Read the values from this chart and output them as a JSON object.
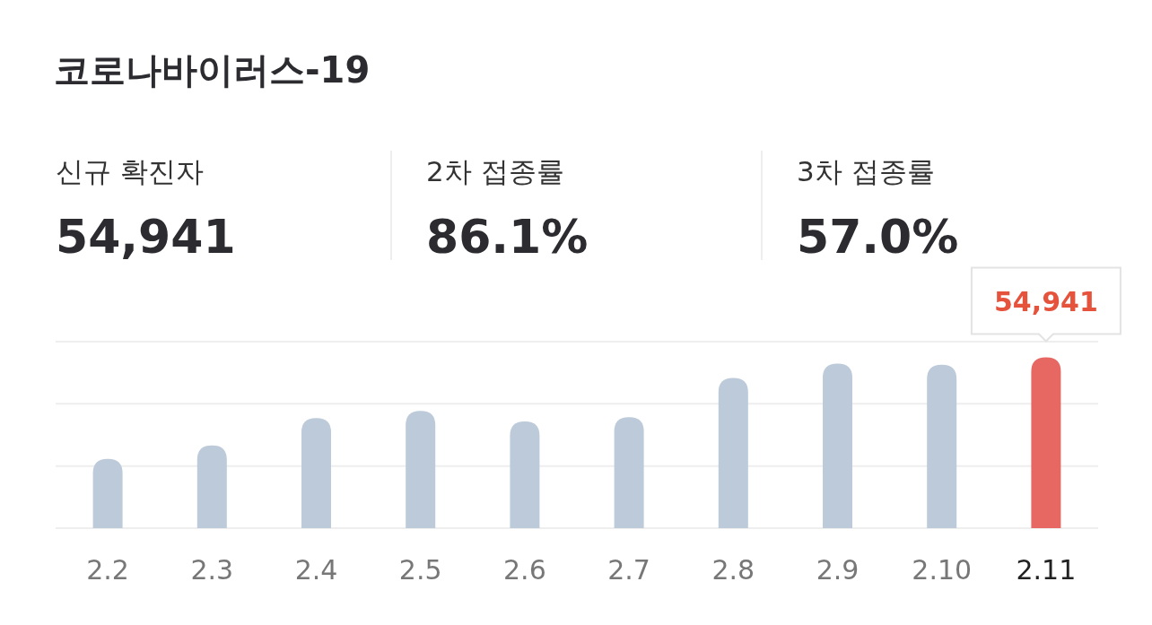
{
  "chart_data": {
    "type": "bar",
    "title": "코로나바이러스-19",
    "annotations": [
      "신규 확진자",
      "54,941",
      "2차 접종률",
      "86.1%",
      "3차 접종률",
      "57.0%"
    ],
    "categories": [
      "2.2",
      "2.3",
      "2.4",
      "2.5",
      "2.6",
      "2.7",
      "2.8",
      "2.9",
      "2.10",
      "2.11"
    ],
    "ylim": [
      0,
      60000
    ],
    "yticks": [
      {
        "value": 0,
        "label": null
      },
      {
        "value": 20000,
        "label": null
      },
      {
        "value": 40000,
        "label": null
      },
      {
        "value": 60000,
        "label": null
      }
    ],
    "values": [
      22300,
      26600,
      35400,
      37700,
      34300,
      35700,
      48300,
      52900,
      52600,
      54941
    ],
    "colors": [
      "#bccada",
      "#bccada",
      "#bccada",
      "#bccada",
      "#bccada",
      "#bccada",
      "#bccada",
      "#bccada",
      "#bccada",
      "#e76862"
    ],
    "value_labels": [
      null,
      null,
      null,
      null,
      null,
      null,
      null,
      null,
      null,
      "54,941"
    ],
    "grid": "y"
  }
}
